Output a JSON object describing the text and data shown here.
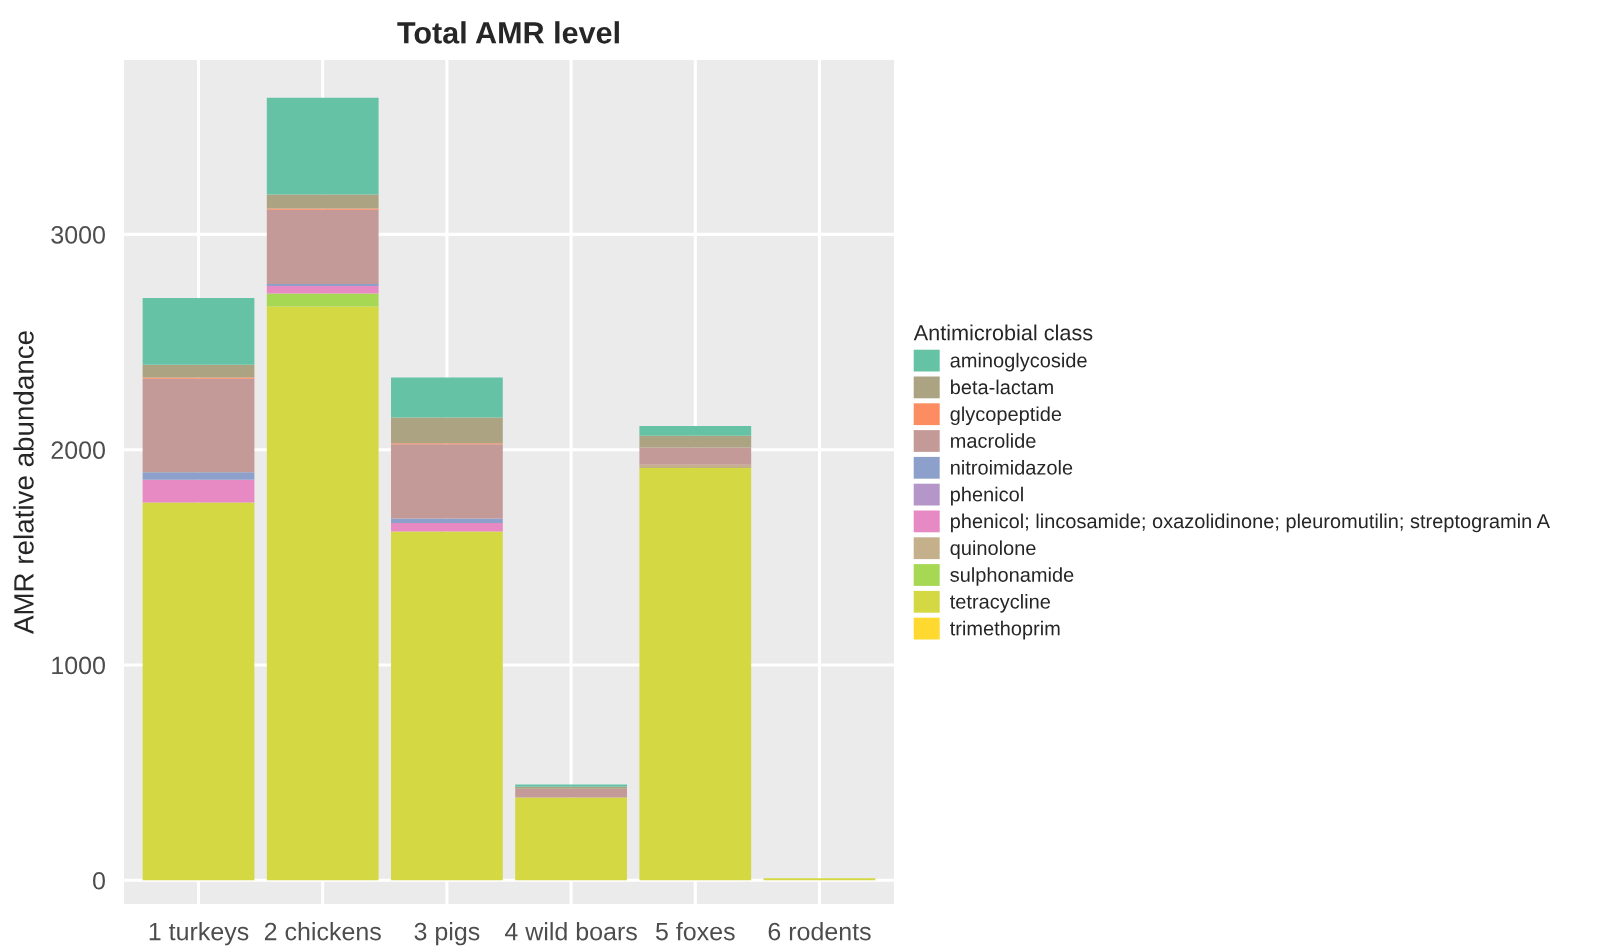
{
  "chart_data": {
    "type": "bar",
    "title": "Total AMR level",
    "ylabel": "AMR relative abundance",
    "legend_title": "Antimicrobial class",
    "stacked": true,
    "legend": "right",
    "grid": true,
    "categories": [
      "1 turkeys",
      "2 chickens",
      "3 pigs",
      "4 wild boars",
      "5 foxes",
      "6 rodents"
    ],
    "ylim": [
      -110,
      3810
    ],
    "yticks": [
      0,
      1000,
      2000,
      3000
    ],
    "series": [
      {
        "name": "trimethoprim",
        "color": "#ffd92f",
        "values": [
          0,
          0,
          0,
          0,
          0,
          0
        ]
      },
      {
        "name": "tetracycline",
        "color": "#d4d843",
        "values": [
          1755,
          2665,
          1620,
          385,
          1915,
          10
        ]
      },
      {
        "name": "sulphonamide",
        "color": "#a6d854",
        "values": [
          0,
          60,
          0,
          0,
          0,
          0
        ]
      },
      {
        "name": "quinolone",
        "color": "#c4b08a",
        "values": [
          0,
          0,
          0,
          0,
          15,
          0
        ]
      },
      {
        "name": "phenicol; lincosamide; oxazolidinone; pleuromutilin; streptogramin A",
        "color": "#e78ac3",
        "values": [
          105,
          35,
          40,
          0,
          0,
          0
        ]
      },
      {
        "name": "phenicol",
        "color": "#b596c8",
        "values": [
          0,
          0,
          0,
          0,
          0,
          0
        ]
      },
      {
        "name": "nitroimidazole",
        "color": "#8da0cb",
        "values": [
          35,
          10,
          20,
          0,
          0,
          0
        ]
      },
      {
        "name": "macrolide",
        "color": "#c49a98",
        "values": [
          435,
          345,
          345,
          40,
          80,
          0
        ]
      },
      {
        "name": "glycopeptide",
        "color": "#fc8d62",
        "values": [
          5,
          5,
          5,
          0,
          0,
          0
        ]
      },
      {
        "name": "beta-lactam",
        "color": "#aba382",
        "values": [
          60,
          65,
          120,
          10,
          55,
          0
        ]
      },
      {
        "name": "aminoglycoside",
        "color": "#66c2a5",
        "values": [
          310,
          450,
          185,
          10,
          45,
          0
        ]
      }
    ]
  }
}
